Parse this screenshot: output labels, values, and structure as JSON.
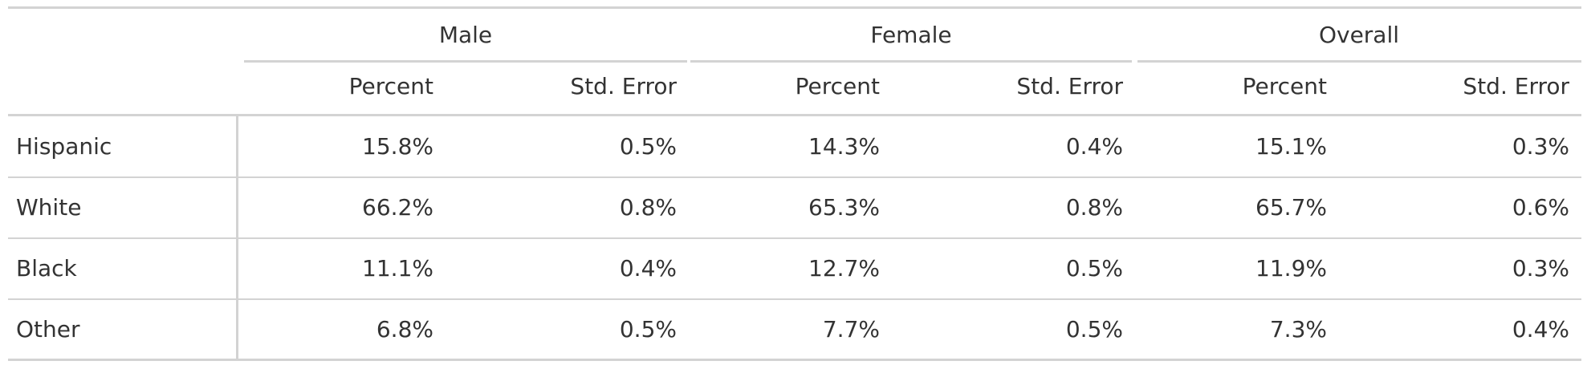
{
  "table": {
    "spanners": [
      "Male",
      "Female",
      "Overall"
    ],
    "column_labels": [
      "Percent",
      "Std. Error",
      "Percent",
      "Std. Error",
      "Percent",
      "Std. Error"
    ],
    "rows": [
      {
        "label": "Hispanic",
        "values": [
          "15.8%",
          "0.5%",
          "14.3%",
          "0.4%",
          "15.1%",
          "0.3%"
        ]
      },
      {
        "label": "White",
        "values": [
          "66.2%",
          "0.8%",
          "65.3%",
          "0.8%",
          "65.7%",
          "0.6%"
        ]
      },
      {
        "label": "Black",
        "values": [
          "11.1%",
          "0.4%",
          "12.7%",
          "0.5%",
          "11.9%",
          "0.3%"
        ]
      },
      {
        "label": "Other",
        "values": [
          "6.8%",
          "0.5%",
          "7.7%",
          "0.5%",
          "7.3%",
          "0.4%"
        ]
      }
    ]
  }
}
